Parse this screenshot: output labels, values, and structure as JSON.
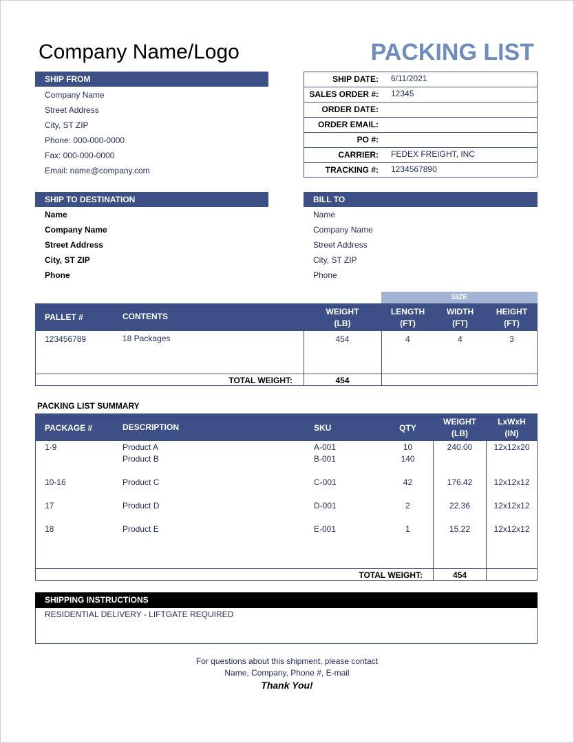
{
  "header": {
    "company": "Company Name/Logo",
    "title": "PACKING LIST"
  },
  "ship_from": {
    "label": "SHIP FROM",
    "lines": [
      "Company Name",
      "Street Address",
      "City, ST  ZIP",
      "Phone: 000-000-0000",
      "Fax: 000-000-0000",
      "Email: name@company.com"
    ]
  },
  "order_info": [
    {
      "label": "SHIP DATE:",
      "value": "6/11/2021"
    },
    {
      "label": "SALES ORDER #:",
      "value": "12345"
    },
    {
      "label": "ORDER DATE:",
      "value": ""
    },
    {
      "label": "ORDER EMAIL:",
      "value": ""
    },
    {
      "label": "PO #:",
      "value": ""
    },
    {
      "label": "CARRIER:",
      "value": "FEDEX FREIGHT, INC"
    },
    {
      "label": "TRACKING #:",
      "value": "1234567890"
    }
  ],
  "ship_to": {
    "label": "SHIP TO DESTINATION",
    "lines": [
      "Name",
      "Company Name",
      "Street Address",
      "City, ST  ZIP",
      "Phone"
    ]
  },
  "bill_to": {
    "label": "BILL TO",
    "lines": [
      "Name",
      "Company Name",
      "Street Address",
      "City, ST  ZIP",
      "Phone"
    ]
  },
  "pallet": {
    "size_label": "SIZE",
    "headers": {
      "pallet": "PALLET #",
      "contents": "CONTENTS",
      "weight": [
        "WEIGHT",
        "(LB)"
      ],
      "length": [
        "LENGTH",
        "(FT)"
      ],
      "width": [
        "WIDTH",
        "(FT)"
      ],
      "height": [
        "HEIGHT",
        "(FT)"
      ]
    },
    "row": {
      "pallet": "123456789",
      "contents": "18 Packages",
      "weight": "454",
      "length": "4",
      "width": "4",
      "height": "3"
    },
    "total_label": "TOTAL WEIGHT:",
    "total": "454"
  },
  "summary": {
    "title": "PACKING LIST SUMMARY",
    "headers": {
      "package": "PACKAGE #",
      "description": "DESCRIPTION",
      "sku": "SKU",
      "qty": "QTY",
      "weight": [
        "WEIGHT",
        "(LB)"
      ],
      "dims": [
        "LxWxH",
        "(IN)"
      ]
    },
    "rows": [
      {
        "package": "1-9",
        "description": "Product A",
        "sku": "A-001",
        "qty": "10",
        "weight": "240.00",
        "dims": "12x12x20"
      },
      {
        "package": "",
        "description": "Product B",
        "sku": "B-001",
        "qty": "140",
        "weight": "",
        "dims": ""
      },
      {
        "package": "10-16",
        "description": "Product C",
        "sku": "C-001",
        "qty": "42",
        "weight": "176.42",
        "dims": "12x12x12"
      },
      {
        "package": "17",
        "description": "Product D",
        "sku": "D-001",
        "qty": "2",
        "weight": "22.36",
        "dims": "12x12x12"
      },
      {
        "package": "18",
        "description": "Product E",
        "sku": "E-001",
        "qty": "1",
        "weight": "15.22",
        "dims": "12x12x12"
      }
    ],
    "total_label": "TOTAL WEIGHT:",
    "total": "454"
  },
  "instructions": {
    "label": "SHIPPING INSTRUCTIONS",
    "text": "RESIDENTIAL DELIVERY - LIFTGATE REQUIRED"
  },
  "footer": {
    "line1": "For questions about this shipment, please contact",
    "line2": "Name, Company, Phone #, E-mail",
    "thanks": "Thank You!"
  }
}
